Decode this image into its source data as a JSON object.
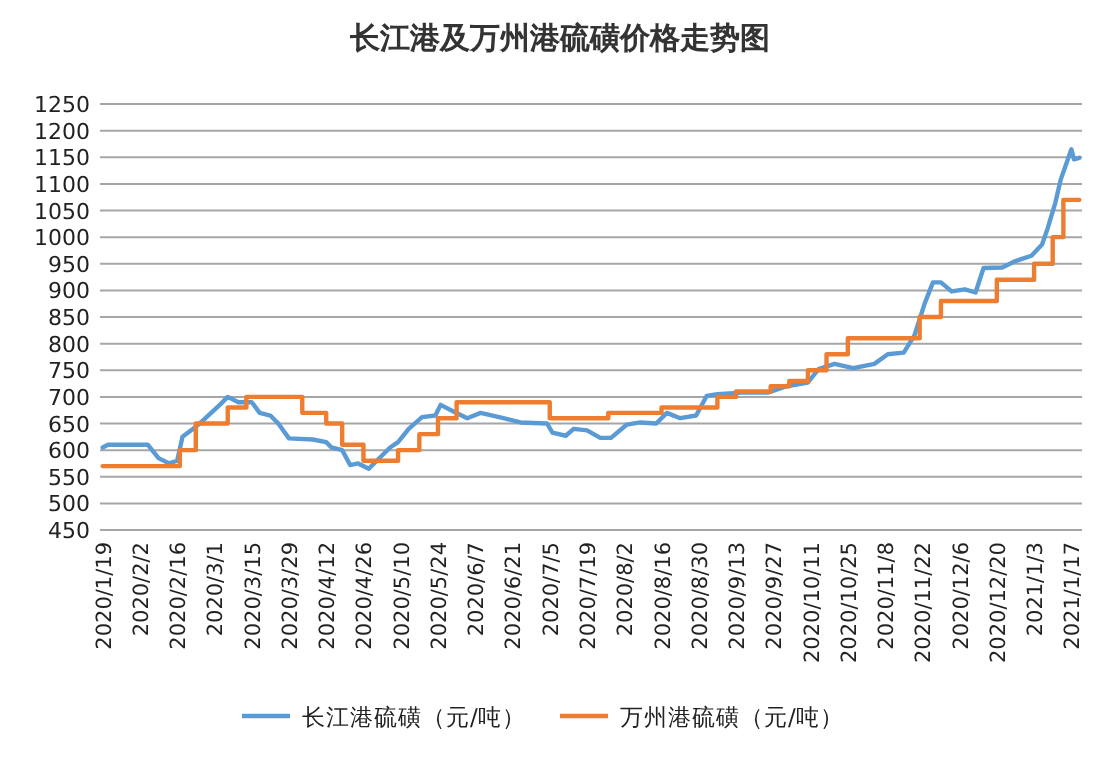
{
  "chart_data": {
    "type": "line",
    "title": "长江港及万州港硫磺价格走势图",
    "xlim": [
      "2020-01-18",
      "2021-01-21"
    ],
    "xticks": [
      {
        "value": "2020-01-19",
        "label": "2020/1/19"
      },
      {
        "value": "2020-02-02",
        "label": "2020/2/2"
      },
      {
        "value": "2020-02-16",
        "label": "2020/2/16"
      },
      {
        "value": "2020-03-01",
        "label": "2020/3/1"
      },
      {
        "value": "2020-03-15",
        "label": "2020/3/15"
      },
      {
        "value": "2020-03-29",
        "label": "2020/3/29"
      },
      {
        "value": "2020-04-12",
        "label": "2020/4/12"
      },
      {
        "value": "2020-04-26",
        "label": "2020/4/26"
      },
      {
        "value": "2020-05-10",
        "label": "2020/5/10"
      },
      {
        "value": "2020-05-24",
        "label": "2020/5/24"
      },
      {
        "value": "2020-06-07",
        "label": "2020/6/7"
      },
      {
        "value": "2020-06-21",
        "label": "2020/6/21"
      },
      {
        "value": "2020-07-05",
        "label": "2020/7/5"
      },
      {
        "value": "2020-07-19",
        "label": "2020/7/19"
      },
      {
        "value": "2020-08-02",
        "label": "2020/8/2"
      },
      {
        "value": "2020-08-16",
        "label": "2020/8/16"
      },
      {
        "value": "2020-08-30",
        "label": "2020/8/30"
      },
      {
        "value": "2020-09-13",
        "label": "2020/9/13"
      },
      {
        "value": "2020-09-27",
        "label": "2020/9/27"
      },
      {
        "value": "2020-10-11",
        "label": "2020/10/11"
      },
      {
        "value": "2020-10-25",
        "label": "2020/10/25"
      },
      {
        "value": "2020-11-08",
        "label": "2020/11/8"
      },
      {
        "value": "2020-11-22",
        "label": "2020/11/22"
      },
      {
        "value": "2020-12-06",
        "label": "2020/12/6"
      },
      {
        "value": "2020-12-20",
        "label": "2020/12/20"
      },
      {
        "value": "2021-01-03",
        "label": "2021/1/3"
      },
      {
        "value": "2021-01-17",
        "label": "2021/1/17"
      }
    ],
    "ylim": [
      450,
      1250
    ],
    "yticks": [
      450,
      500,
      550,
      600,
      650,
      700,
      750,
      800,
      850,
      900,
      950,
      1000,
      1050,
      1100,
      1150,
      1200,
      1250
    ],
    "grid": "y",
    "legend": "bottom",
    "series": [
      {
        "name": "长江港硫磺（元/吨）",
        "color": "#5b9bd5",
        "x": [
          "2020-01-19",
          "2020-01-21",
          "2020-02-05",
          "2020-02-09",
          "2020-02-13",
          "2020-02-16",
          "2020-02-18",
          "2020-02-22",
          "2020-02-24",
          "2020-03-03",
          "2020-03-06",
          "2020-03-10",
          "2020-03-15",
          "2020-03-18",
          "2020-03-22",
          "2020-03-25",
          "2020-03-29",
          "2020-04-07",
          "2020-04-12",
          "2020-04-14",
          "2020-04-18",
          "2020-04-21",
          "2020-04-24",
          "2020-04-28",
          "2020-05-01",
          "2020-05-06",
          "2020-05-09",
          "2020-05-13",
          "2020-05-18",
          "2020-05-23",
          "2020-05-25",
          "2020-05-30",
          "2020-06-04",
          "2020-06-09",
          "2020-06-16",
          "2020-06-24",
          "2020-07-04",
          "2020-07-06",
          "2020-07-11",
          "2020-07-14",
          "2020-07-19",
          "2020-07-24",
          "2020-07-28",
          "2020-08-03",
          "2020-08-08",
          "2020-08-14",
          "2020-08-18",
          "2020-08-23",
          "2020-08-29",
          "2020-09-02",
          "2020-09-06",
          "2020-09-15",
          "2020-09-25",
          "2020-10-02",
          "2020-10-10",
          "2020-10-14",
          "2020-10-20",
          "2020-10-27",
          "2020-11-04",
          "2020-11-09",
          "2020-11-15",
          "2020-11-19",
          "2020-11-23",
          "2020-11-26",
          "2020-11-29",
          "2020-12-03",
          "2020-12-08",
          "2020-12-12",
          "2020-12-15",
          "2020-12-22",
          "2020-12-27",
          "2021-01-02",
          "2021-01-06",
          "2021-01-08",
          "2021-01-11",
          "2021-01-13",
          "2021-01-17",
          "2021-01-18",
          "2021-01-20"
        ],
        "values": [
          605,
          610,
          610,
          585,
          575,
          580,
          625,
          640,
          648,
          685,
          700,
          690,
          690,
          670,
          665,
          650,
          622,
          620,
          615,
          605,
          600,
          572,
          575,
          565,
          580,
          605,
          615,
          640,
          662,
          665,
          685,
          672,
          660,
          670,
          662,
          652,
          650,
          633,
          627,
          640,
          637,
          623,
          623,
          648,
          652,
          650,
          670,
          660,
          665,
          702,
          705,
          708,
          708,
          720,
          727,
          752,
          762,
          754,
          762,
          780,
          783,
          815,
          877,
          915,
          915,
          898,
          902,
          896,
          942,
          943,
          955,
          965,
          986,
          1015,
          1065,
          1108,
          1165,
          1146,
          1149
        ]
      },
      {
        "name": "万州港硫磺（元/吨）",
        "color": "#ed7d31",
        "type": "step",
        "x": [
          "2020-01-19",
          "2020-02-17",
          "2020-02-23",
          "2020-03-06",
          "2020-03-13",
          "2020-04-03",
          "2020-04-12",
          "2020-04-18",
          "2020-04-26",
          "2020-05-09",
          "2020-05-17",
          "2020-05-24",
          "2020-05-31",
          "2020-07-05",
          "2020-07-27",
          "2020-08-16",
          "2020-09-06",
          "2020-09-13",
          "2020-09-26",
          "2020-10-03",
          "2020-10-10",
          "2020-10-17",
          "2020-10-25",
          "2020-11-21",
          "2020-11-29",
          "2020-12-20",
          "2021-01-03",
          "2021-01-10",
          "2021-01-14",
          "2021-01-20"
        ],
        "values": [
          570,
          600,
          650,
          680,
          700,
          670,
          650,
          610,
          580,
          600,
          630,
          660,
          690,
          660,
          670,
          680,
          700,
          710,
          720,
          730,
          750,
          780,
          810,
          850,
          880,
          920,
          950,
          1000,
          1070,
          1070
        ]
      }
    ]
  }
}
